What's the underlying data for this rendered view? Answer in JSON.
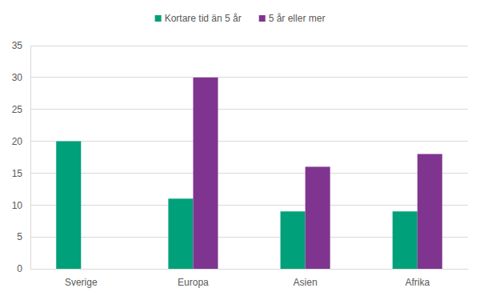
{
  "chart_data": {
    "type": "bar",
    "categories": [
      "Sverige",
      "Europa",
      "Asien",
      "Afrika"
    ],
    "series": [
      {
        "name": "Kortare tid än 5 år",
        "color": "#00a07a",
        "values": [
          20,
          11,
          9,
          9
        ]
      },
      {
        "name": "5 år eller mer",
        "color": "#7f3590",
        "values": [
          null,
          30,
          16,
          18
        ]
      }
    ],
    "ylim": [
      0,
      35
    ],
    "yticks": [
      0,
      5,
      10,
      15,
      20,
      25,
      30,
      35
    ],
    "grid": true,
    "legend": "top"
  }
}
